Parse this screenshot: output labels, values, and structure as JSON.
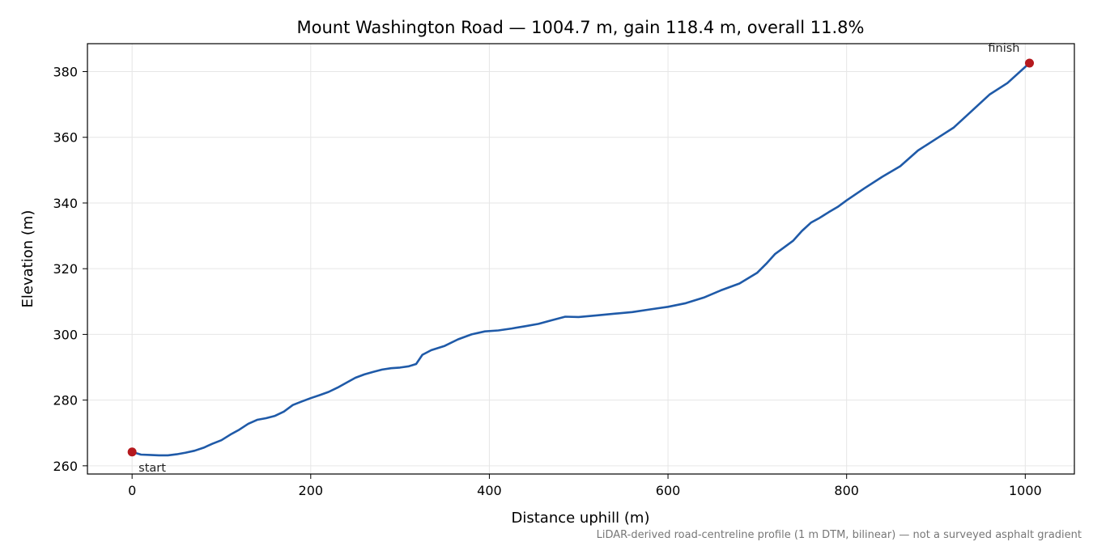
{
  "chart_data": {
    "type": "line",
    "title": "Mount Washington Road — 1004.7 m, gain 118.4 m, overall 11.8%",
    "xlabel": "Distance uphill (m)",
    "ylabel": "Elevation (m)",
    "xlim": [
      -50,
      1055
    ],
    "ylim": [
      257.5,
      388.5
    ],
    "xticks": [
      0,
      200,
      400,
      600,
      800,
      1000
    ],
    "yticks": [
      260,
      280,
      300,
      320,
      340,
      360,
      380
    ],
    "grid": true,
    "line_color": "#1f5aa8",
    "marker_color": "#b5191e",
    "series": [
      {
        "x": [
          0,
          10,
          20,
          30,
          40,
          50,
          60,
          70,
          80,
          90,
          100,
          110,
          120,
          130,
          140,
          150,
          160,
          170,
          180,
          190,
          200,
          210,
          220,
          230,
          240,
          250,
          260,
          270,
          280,
          290,
          300,
          310,
          318,
          325,
          335,
          350,
          365,
          380,
          395,
          410,
          425,
          440,
          455,
          470,
          485,
          500,
          520,
          540,
          560,
          580,
          600,
          620,
          640,
          660,
          680,
          700,
          710,
          720,
          730,
          740,
          750,
          760,
          770,
          780,
          790,
          800,
          820,
          840,
          860,
          880,
          900,
          920,
          940,
          960,
          980,
          1004.7
        ],
        "y": [
          264.2,
          263.4,
          263.3,
          263.2,
          263.2,
          263.5,
          264.0,
          264.6,
          265.5,
          266.7,
          267.8,
          269.5,
          271.0,
          272.8,
          274.0,
          274.5,
          275.2,
          276.5,
          278.5,
          279.6,
          280.6,
          281.5,
          282.5,
          283.8,
          285.3,
          286.8,
          287.8,
          288.6,
          289.3,
          289.7,
          289.9,
          290.3,
          291.0,
          293.8,
          295.2,
          296.5,
          298.5,
          300.0,
          300.9,
          301.2,
          301.8,
          302.5,
          303.2,
          304.3,
          305.4,
          305.3,
          305.8,
          306.3,
          306.8,
          307.6,
          308.4,
          309.5,
          311.2,
          313.5,
          315.5,
          318.8,
          321.5,
          324.5,
          326.5,
          328.5,
          331.5,
          334.0,
          335.5,
          337.2,
          338.8,
          340.8,
          344.5,
          348.0,
          351.2,
          356.0,
          359.5,
          363.0,
          368.0,
          373.0,
          376.5,
          382.6
        ]
      }
    ],
    "annotations": [
      {
        "text": "start",
        "x": 0,
        "y": 264.2
      },
      {
        "text": "finish",
        "x": 1004.7,
        "y": 382.6
      }
    ],
    "footnote": "LiDAR-derived road-centreline profile (1 m DTM, bilinear) — not a surveyed asphalt gradient"
  }
}
